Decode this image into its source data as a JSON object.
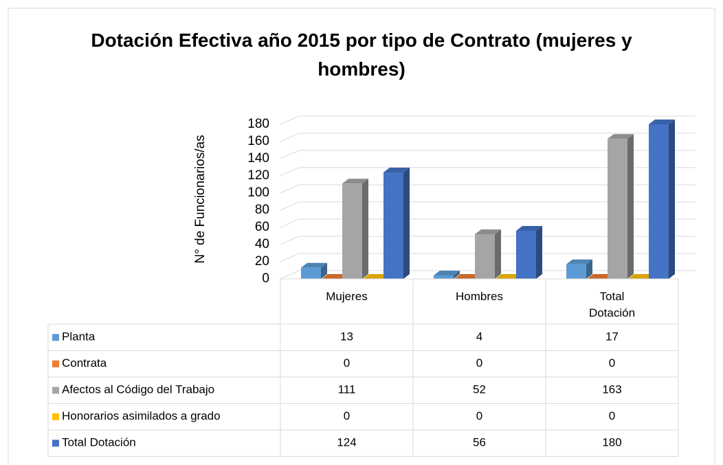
{
  "chart_data": {
    "type": "bar3d",
    "title": "Dotación Efectiva año 2015 por tipo de Contrato (mujeres y hombres)",
    "y_label": "N° de Funcionarios/as",
    "categories": [
      "Mujeres",
      "Hombres",
      "Total Dotación"
    ],
    "series": [
      {
        "name": "Planta",
        "color": "#5b9bd5",
        "values": [
          13,
          4,
          17
        ]
      },
      {
        "name": "Contrata",
        "color": "#ed7d31",
        "values": [
          0,
          0,
          0
        ]
      },
      {
        "name": "Afectos al Código del Trabajo",
        "color": "#a5a5a5",
        "values": [
          111,
          52,
          163
        ]
      },
      {
        "name": "Honorarios asimilados a grado",
        "color": "#ffc000",
        "values": [
          0,
          0,
          0
        ]
      },
      {
        "name": "Total Dotación",
        "color": "#4472c4",
        "values": [
          124,
          56,
          180
        ]
      }
    ],
    "ylim": [
      0,
      180
    ],
    "yticks": [
      0,
      20,
      40,
      60,
      80,
      100,
      120,
      140,
      160,
      180
    ],
    "grid": true,
    "data_table": true
  }
}
